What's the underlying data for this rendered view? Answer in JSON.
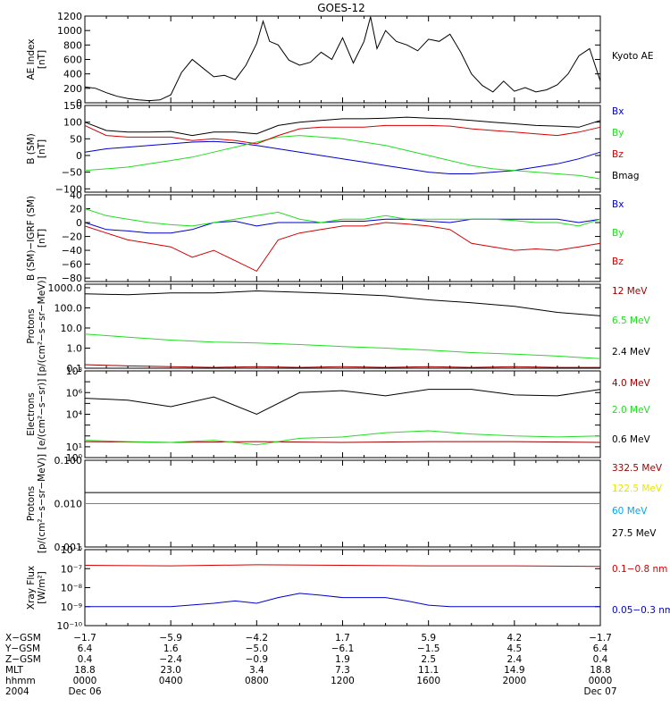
{
  "figure": {
    "title": "GOES-12",
    "colors": {
      "black": "#000000",
      "red": "#d40000",
      "green": "#22dd22",
      "blue": "#0000cc",
      "darkred": "#990000",
      "yellow": "#e6e600",
      "cyan": "#00a8e8"
    }
  },
  "chart_data": [
    {
      "type": "line",
      "id": "ae",
      "ylabel": [
        "AE Index",
        "[nT]"
      ],
      "ylim": [
        0,
        1200
      ],
      "yscale": "linear",
      "yticks": [
        0,
        200,
        400,
        600,
        800,
        1000,
        1200
      ],
      "ytick_labels": [
        "0",
        "200",
        "400",
        "600",
        "800",
        "1000",
        "1200"
      ],
      "series": [
        {
          "name": "Kyoto AE",
          "color": "black",
          "x": [
            0,
            0.5,
            1,
            1.5,
            2,
            2.5,
            3,
            3.5,
            4,
            4.5,
            5,
            5.5,
            6,
            6.5,
            7,
            7.5,
            8,
            8.3,
            8.6,
            9,
            9.5,
            10,
            10.5,
            11,
            11.5,
            12,
            12.5,
            13,
            13.3,
            13.6,
            14,
            14.5,
            15,
            15.5,
            16,
            16.5,
            17,
            17.5,
            18,
            18.5,
            19,
            19.5,
            20,
            20.5,
            21,
            21.5,
            22,
            22.5,
            23,
            23.5,
            24
          ],
          "values": [
            220,
            200,
            140,
            90,
            60,
            40,
            30,
            40,
            110,
            420,
            600,
            480,
            360,
            380,
            320,
            520,
            820,
            1130,
            850,
            800,
            590,
            520,
            560,
            700,
            600,
            900,
            550,
            850,
            1190,
            750,
            1000,
            850,
            800,
            720,
            880,
            850,
            950,
            700,
            400,
            240,
            150,
            300,
            160,
            210,
            150,
            180,
            250,
            400,
            650,
            750,
            300
          ]
        }
      ]
    },
    {
      "type": "line",
      "id": "bgsm",
      "ylabel": [
        "B (SM)",
        "[nT]"
      ],
      "ylim": [
        -110,
        150
      ],
      "yscale": "linear",
      "yticks": [
        -100,
        -50,
        0,
        50,
        100,
        150
      ],
      "ytick_labels": [
        "−100",
        "−50",
        "0",
        "50",
        "100",
        "150"
      ],
      "series": [
        {
          "name": "Bx",
          "color": "blue",
          "x": [
            0,
            1,
            2,
            3,
            4,
            5,
            6,
            7,
            8,
            9,
            10,
            11,
            12,
            13,
            14,
            15,
            16,
            17,
            18,
            19,
            20,
            21,
            22,
            23,
            24
          ],
          "values": [
            10,
            20,
            25,
            30,
            35,
            40,
            42,
            38,
            30,
            20,
            10,
            0,
            -10,
            -20,
            -30,
            -40,
            -50,
            -55,
            -55,
            -50,
            -45,
            -35,
            -25,
            -10,
            10
          ]
        },
        {
          "name": "By",
          "color": "green",
          "x": [
            0,
            1,
            2,
            3,
            4,
            5,
            6,
            7,
            8,
            9,
            10,
            11,
            12,
            13,
            14,
            15,
            16,
            17,
            18,
            19,
            20,
            21,
            22,
            23,
            24
          ],
          "values": [
            -45,
            -40,
            -35,
            -25,
            -15,
            -5,
            10,
            25,
            40,
            55,
            60,
            55,
            50,
            40,
            30,
            15,
            0,
            -15,
            -30,
            -40,
            -45,
            -50,
            -55,
            -60,
            -70
          ]
        },
        {
          "name": "Bz",
          "color": "red",
          "x": [
            0,
            1,
            2,
            3,
            4,
            5,
            6,
            7,
            8,
            9,
            10,
            11,
            12,
            13,
            14,
            15,
            16,
            17,
            18,
            19,
            20,
            21,
            22,
            23,
            24
          ],
          "values": [
            90,
            60,
            55,
            55,
            55,
            45,
            50,
            45,
            35,
            60,
            80,
            85,
            85,
            85,
            90,
            90,
            90,
            88,
            80,
            75,
            70,
            65,
            60,
            70,
            85
          ]
        },
        {
          "name": "Bmag",
          "color": "black",
          "x": [
            0,
            1,
            2,
            3,
            4,
            5,
            6,
            7,
            8,
            9,
            10,
            11,
            12,
            13,
            14,
            15,
            16,
            17,
            18,
            19,
            20,
            21,
            22,
            23,
            24
          ],
          "values": [
            100,
            75,
            70,
            70,
            72,
            60,
            70,
            70,
            65,
            90,
            100,
            105,
            110,
            110,
            112,
            115,
            112,
            110,
            105,
            100,
            95,
            90,
            88,
            85,
            105
          ]
        }
      ]
    },
    {
      "type": "line",
      "id": "bdiff",
      "ylabel": [
        "B (SM)−IGRF (SM)",
        "[nT]"
      ],
      "ylim": [
        -85,
        40
      ],
      "yscale": "linear",
      "yticks": [
        -80,
        -60,
        -40,
        -20,
        0,
        20,
        40
      ],
      "ytick_labels": [
        "−80",
        "−60",
        "−40",
        "−20",
        "0",
        "20",
        "40"
      ],
      "series": [
        {
          "name": "Bx",
          "color": "blue",
          "x": [
            0,
            1,
            2,
            3,
            4,
            5,
            6,
            7,
            8,
            9,
            10,
            11,
            12,
            13,
            14,
            15,
            16,
            17,
            18,
            19,
            20,
            21,
            22,
            23,
            24
          ],
          "values": [
            0,
            -10,
            -12,
            -15,
            -15,
            -10,
            0,
            2,
            -5,
            0,
            0,
            0,
            2,
            2,
            5,
            5,
            2,
            0,
            5,
            5,
            5,
            5,
            5,
            0,
            5
          ]
        },
        {
          "name": "By",
          "color": "green",
          "x": [
            0,
            1,
            2,
            3,
            4,
            5,
            6,
            7,
            8,
            9,
            10,
            11,
            12,
            13,
            14,
            15,
            16,
            17,
            18,
            19,
            20,
            21,
            22,
            23,
            24
          ],
          "values": [
            20,
            10,
            5,
            0,
            -3,
            -5,
            0,
            5,
            10,
            15,
            5,
            0,
            5,
            5,
            10,
            5,
            5,
            5,
            5,
            5,
            3,
            0,
            0,
            -5,
            5
          ]
        },
        {
          "name": "Bz",
          "color": "red",
          "x": [
            0,
            1,
            2,
            3,
            4,
            5,
            6,
            7,
            8,
            9,
            10,
            11,
            12,
            13,
            14,
            15,
            16,
            17,
            18,
            19,
            20,
            21,
            22,
            23,
            24
          ],
          "values": [
            -5,
            -15,
            -25,
            -30,
            -35,
            -50,
            -40,
            -55,
            -70,
            -25,
            -15,
            -10,
            -5,
            -5,
            0,
            -2,
            -5,
            -10,
            -30,
            -35,
            -40,
            -38,
            -40,
            -35,
            -30
          ]
        }
      ]
    },
    {
      "type": "line",
      "id": "protons1",
      "ylabel": [
        "Protons",
        "[p/(cm²−s−sr−MeV)]"
      ],
      "ylim": [
        0.1,
        1500
      ],
      "yscale": "log",
      "yticks": [
        0.1,
        1,
        10,
        100,
        1000
      ],
      "ytick_labels": [
        "0.1",
        "1.0",
        "10.0",
        "100.0",
        "1000.0"
      ],
      "series": [
        {
          "name": "12 MeV",
          "color": "darkred",
          "x": [
            0,
            2,
            4,
            6,
            8,
            10,
            12,
            14,
            16,
            18,
            20,
            22,
            24
          ],
          "values": [
            0.15,
            0.13,
            0.12,
            0.11,
            0.12,
            0.11,
            0.12,
            0.11,
            0.12,
            0.11,
            0.12,
            0.11,
            0.11
          ]
        },
        {
          "name": "6.5 MeV",
          "color": "green",
          "x": [
            0,
            2,
            4,
            6,
            8,
            10,
            12,
            14,
            16,
            18,
            20,
            22,
            24
          ],
          "values": [
            5,
            3.5,
            2.5,
            2,
            1.8,
            1.5,
            1.2,
            1,
            0.8,
            0.6,
            0.5,
            0.4,
            0.3
          ]
        },
        {
          "name": "2.4 MeV",
          "color": "black",
          "x": [
            0,
            2,
            4,
            6,
            8,
            10,
            12,
            14,
            16,
            18,
            20,
            22,
            24
          ],
          "values": [
            500,
            450,
            550,
            550,
            700,
            600,
            500,
            400,
            250,
            180,
            120,
            60,
            40
          ]
        }
      ]
    },
    {
      "type": "line",
      "id": "electrons",
      "ylabel": [
        "Electrons",
        "[e/(cm²−s−sr)]"
      ],
      "ylim": [
        1,
        100000000.0
      ],
      "yscale": "log",
      "yticks": [
        1,
        10,
        100,
        1000,
        10000,
        100000,
        1000000,
        10000000,
        100000000
      ],
      "ytick_labels": [
        "10⁰",
        "10¹",
        "",
        "",
        "10⁴",
        "",
        "10⁶",
        "",
        "10⁸"
      ],
      "series": [
        {
          "name": "4.0 MeV",
          "color": "darkred",
          "x": [
            0,
            4,
            8,
            12,
            16,
            20,
            24
          ],
          "values": [
            30,
            25,
            30,
            25,
            30,
            30,
            25
          ]
        },
        {
          "name": "2.0 MeV",
          "color": "green",
          "x": [
            0,
            2,
            4,
            6,
            8,
            10,
            12,
            14,
            16,
            18,
            20,
            22,
            24
          ],
          "values": [
            40,
            30,
            25,
            40,
            15,
            60,
            80,
            200,
            300,
            150,
            100,
            80,
            100
          ]
        },
        {
          "name": "0.6 MeV",
          "color": "black",
          "x": [
            0,
            2,
            4,
            6,
            8,
            10,
            12,
            14,
            16,
            18,
            20,
            22,
            24
          ],
          "values": [
            300000,
            200000,
            50000,
            400000,
            10000,
            1000000,
            1500000,
            500000,
            2000000,
            2000000,
            600000,
            500000,
            2000000
          ]
        }
      ]
    },
    {
      "type": "line",
      "id": "protons2",
      "ylabel": [
        "Protons",
        "[p/(cm²−s−sr−MeV)]"
      ],
      "ylim": [
        0.001,
        0.1
      ],
      "yscale": "log",
      "yticks": [
        0.001,
        0.01,
        0.1
      ],
      "ytick_labels": [
        "0.001",
        "0.010",
        "0.100"
      ],
      "series": [
        {
          "name": "332.5 MeV",
          "color": "darkred",
          "x": [],
          "values": []
        },
        {
          "name": "122.5 MeV",
          "color": "yellow",
          "x": [],
          "values": []
        },
        {
          "name": "60 MeV",
          "color": "cyan",
          "x": [
            0,
            24
          ],
          "values": [
            0.01,
            0.01
          ]
        },
        {
          "name": "27.5 MeV",
          "color": "black",
          "x": [
            0,
            24
          ],
          "values": [
            0.018,
            0.018
          ]
        }
      ]
    },
    {
      "type": "line",
      "id": "xray",
      "ylabel": [
        "Xray Flux",
        "[W/m²]"
      ],
      "ylim": [
        1e-10,
        1e-06
      ],
      "yscale": "log",
      "yticks": [
        1e-10,
        1e-09,
        1e-08,
        1e-07,
        1e-06
      ],
      "ytick_labels": [
        "10⁻¹⁰",
        "10⁻⁹",
        "10⁻⁸",
        "10⁻⁷",
        "10⁻⁶"
      ],
      "series": [
        {
          "name": "0.1−0.8 nm",
          "color": "red",
          "x": [
            0,
            4,
            8,
            12,
            16,
            20,
            24
          ],
          "values": [
            1.5e-07,
            1.4e-07,
            1.6e-07,
            1.5e-07,
            1.4e-07,
            1.4e-07,
            1.3e-07
          ]
        },
        {
          "name": "0.05−0.3 nm",
          "color": "blue",
          "x": [
            0,
            4,
            6,
            7,
            8,
            9,
            10,
            11,
            12,
            13,
            14,
            15,
            16,
            17,
            18,
            24
          ],
          "values": [
            1e-09,
            1e-09,
            1.5e-09,
            2e-09,
            1.5e-09,
            3e-09,
            5e-09,
            4e-09,
            3e-09,
            3e-09,
            3e-09,
            2e-09,
            1.2e-09,
            1e-09,
            1e-09,
            1e-09
          ]
        }
      ]
    }
  ],
  "footer": {
    "rows": [
      {
        "label": "X−GSM",
        "values": [
          "−1.7",
          "−5.9",
          "−4.2",
          "1.7",
          "5.9",
          "4.2",
          "−1.7"
        ]
      },
      {
        "label": "Y−GSM",
        "values": [
          "6.4",
          "1.6",
          "−5.0",
          "−6.1",
          "−1.5",
          "4.5",
          "6.4"
        ]
      },
      {
        "label": "Z−GSM",
        "values": [
          "0.4",
          "−2.4",
          "−0.9",
          "1.9",
          "2.5",
          "2.4",
          "0.4"
        ]
      },
      {
        "label": "MLT",
        "values": [
          "18.8",
          "23.0",
          "3.4",
          "7.3",
          "11.1",
          "14.9",
          "18.8"
        ]
      },
      {
        "label": "hhmm",
        "values": [
          "0000",
          "0400",
          "0800",
          "1200",
          "1600",
          "2000",
          "0000"
        ]
      },
      {
        "label": "2004",
        "values": [
          "Dec 06",
          "",
          "",
          "",
          "",
          "",
          "Dec 07"
        ]
      }
    ]
  }
}
